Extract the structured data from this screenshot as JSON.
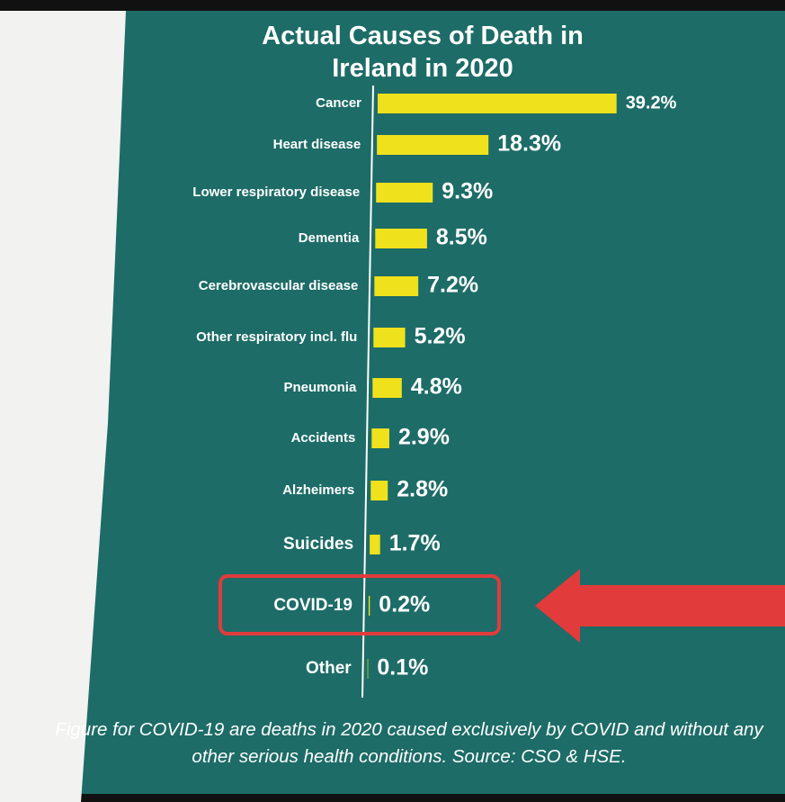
{
  "chart_data": {
    "type": "hbar",
    "title": "Actual Causes of Death in Ireland in 2020",
    "categories": [
      "Cancer",
      "Heart disease",
      "Lower respiratory disease",
      "Dementia",
      "Cerebrovascular disease",
      "Other respiratory incl. flu",
      "Pneumonia",
      "Accidents",
      "Alzheimers",
      "Suicides",
      "COVID-19",
      "Other"
    ],
    "values": [
      39.2,
      18.3,
      9.3,
      8.5,
      7.2,
      5.2,
      4.8,
      2.9,
      2.8,
      1.7,
      0.2,
      0.1
    ],
    "value_labels": [
      "39.2%",
      "18.3%",
      "9.3%",
      "8.5%",
      "7.2%",
      "5.2%",
      "4.8%",
      "2.9%",
      "2.8%",
      "1.7%",
      "0.2%",
      "0.1%"
    ],
    "color": "#efe11c",
    "xlim": [
      0,
      45
    ],
    "highlight": "COVID-19",
    "highlight_color": "#e23b3b",
    "note": "Figure for COVID-19 are deaths in 2020 caused exclusively by COVID and without any other serious health conditions. Source: CSO & HSE."
  }
}
